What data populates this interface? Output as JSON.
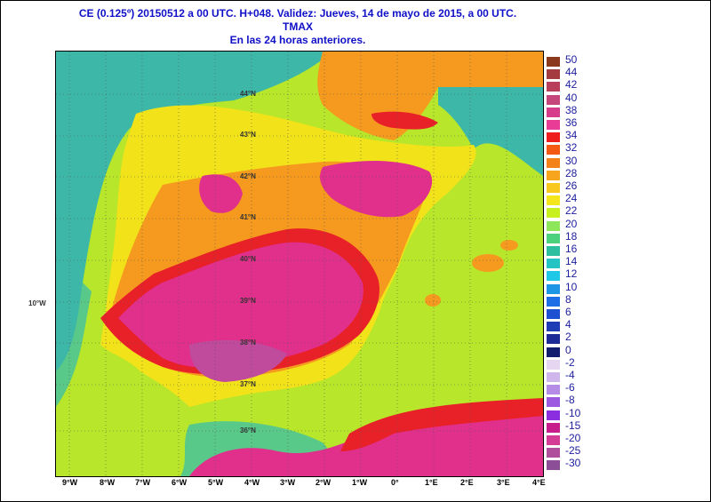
{
  "header": {
    "line1": "CE (0.125º) 20150512 a 00 UTC.  H+048. Validez: Jueves, 14 de mayo de 2015,  a  00 UTC.",
    "line2": "TMAX",
    "line3": "En las 24 horas anteriores."
  },
  "map": {
    "lat_labels": [
      "44°N",
      "43°N",
      "42°N",
      "41°N",
      "40°N",
      "39°N",
      "38°N",
      "37°N",
      "36°N"
    ],
    "lon_labels": [
      "9°W",
      "8°W",
      "7°W",
      "6°W",
      "5°W",
      "4°W",
      "3°W",
      "2°W",
      "1°W",
      "0°",
      "1°E",
      "2°E",
      "3°E",
      "4°E"
    ],
    "side_label": "10°W",
    "colors": {
      "sea_cold": "#3cb7a8",
      "sea_mild": "#8ad65a",
      "sea_warm": "#b8e62a",
      "yellow": "#f2e21a",
      "orange": "#f59a1e",
      "red": "#e82028",
      "magenta": "#e0308c",
      "purple": "#c04a9c"
    }
  },
  "legend": {
    "entries": [
      {
        "label": "50",
        "color": "#8b3a1e"
      },
      {
        "label": "44",
        "color": "#a43b3e"
      },
      {
        "label": "42",
        "color": "#b8405a"
      },
      {
        "label": "40",
        "color": "#c4467a"
      },
      {
        "label": "38",
        "color": "#d63c8a"
      },
      {
        "label": "36",
        "color": "#e83c96"
      },
      {
        "label": "34",
        "color": "#ee1e1e"
      },
      {
        "label": "32",
        "color": "#f45a14"
      },
      {
        "label": "30",
        "color": "#f4821a"
      },
      {
        "label": "28",
        "color": "#f8a51e"
      },
      {
        "label": "26",
        "color": "#f8c81e"
      },
      {
        "label": "24",
        "color": "#f4e61a"
      },
      {
        "label": "22",
        "color": "#c8f01e"
      },
      {
        "label": "20",
        "color": "#8ee65a"
      },
      {
        "label": "18",
        "color": "#4cd27c"
      },
      {
        "label": "16",
        "color": "#2ebfa0"
      },
      {
        "label": "14",
        "color": "#24c4c4"
      },
      {
        "label": "12",
        "color": "#1ec8e6"
      },
      {
        "label": "10",
        "color": "#1e96e6"
      },
      {
        "label": "8",
        "color": "#1e6ee6"
      },
      {
        "label": "6",
        "color": "#1e50d2"
      },
      {
        "label": "4",
        "color": "#1e3cb4"
      },
      {
        "label": "2",
        "color": "#1e2a96"
      },
      {
        "label": "0",
        "color": "#141e6e"
      },
      {
        "label": "-2",
        "color": "#e6d6f2"
      },
      {
        "label": "-4",
        "color": "#cfb6ec"
      },
      {
        "label": "-6",
        "color": "#b48ce6"
      },
      {
        "label": "-8",
        "color": "#9c5ae0"
      },
      {
        "label": "-10",
        "color": "#8a2ee0"
      },
      {
        "label": "-15",
        "color": "#c81e8c"
      },
      {
        "label": "-20",
        "color": "#d43c96"
      },
      {
        "label": "-25",
        "color": "#b0509c"
      },
      {
        "label": "-30",
        "color": "#8c4e96"
      }
    ]
  }
}
